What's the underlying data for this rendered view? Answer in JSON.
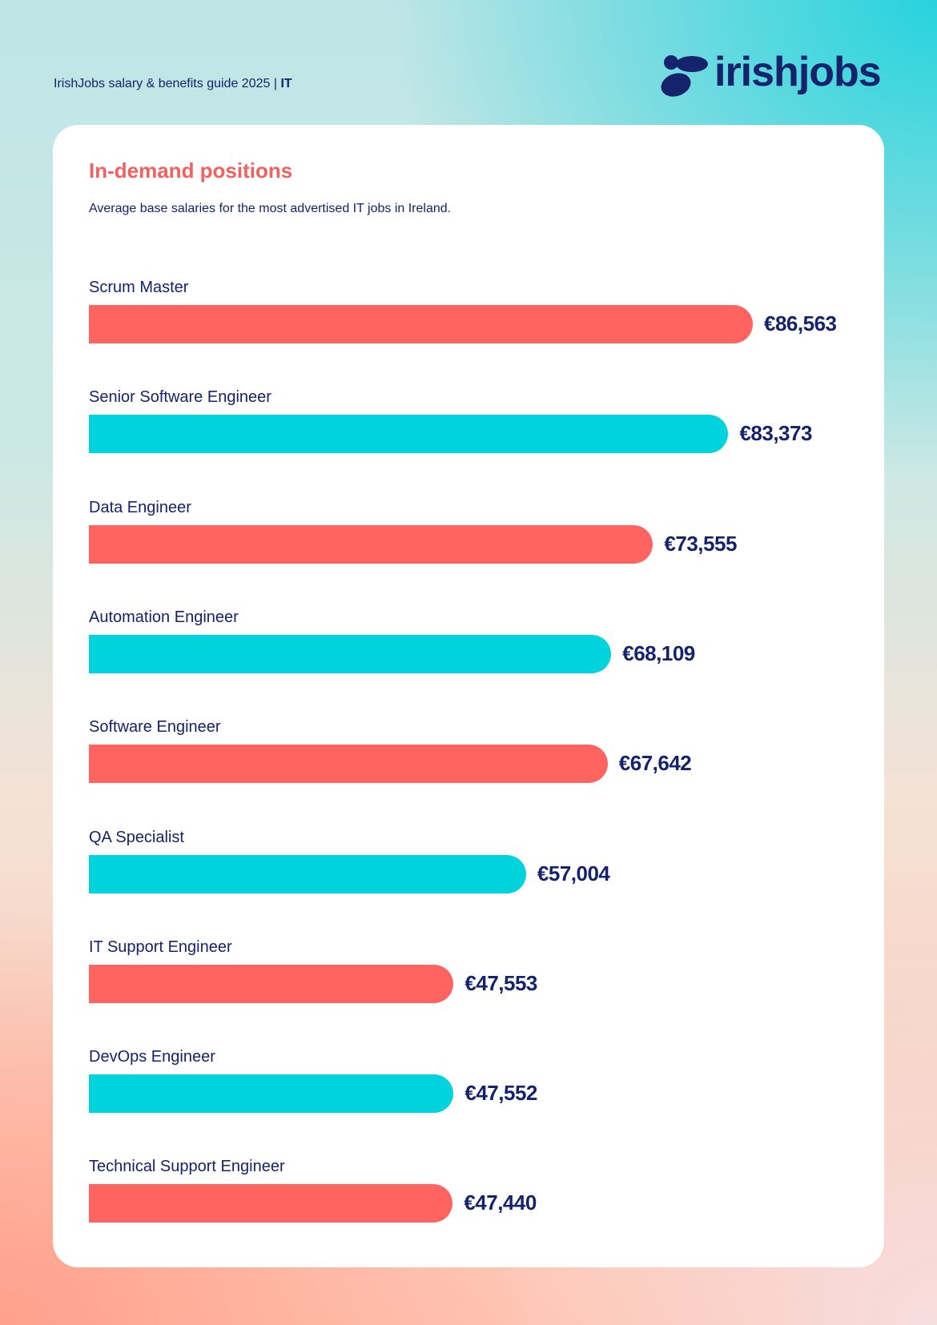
{
  "header": {
    "guide": "IrishJobs salary & benefits guide 2025 | ",
    "section": "IT"
  },
  "logo": {
    "text": "irishjobs",
    "color": "#14236b"
  },
  "chart_data": {
    "type": "bar",
    "orientation": "horizontal",
    "title": "In-demand positions",
    "subtitle": "Average base salaries for the most advertised IT jobs in Ireland.",
    "categories": [
      "Scrum Master",
      "Senior Software Engineer",
      "Data Engineer",
      "Automation Engineer",
      "Software Engineer",
      "QA Specialist",
      "IT Support Engineer",
      "DevOps Engineer",
      "Technical Support Engineer"
    ],
    "values": [
      86563,
      83373,
      73555,
      68109,
      67642,
      57004,
      47553,
      47552,
      47440
    ],
    "labels": [
      "€86,563",
      "€83,373",
      "€73,555",
      "€68,109",
      "€67,642",
      "€57,004",
      "€47,553",
      "€47,552",
      "€47,440"
    ],
    "colors": [
      "#ff6461",
      "#00d3dc"
    ],
    "xlim": [
      0,
      86563
    ],
    "grid": false
  }
}
